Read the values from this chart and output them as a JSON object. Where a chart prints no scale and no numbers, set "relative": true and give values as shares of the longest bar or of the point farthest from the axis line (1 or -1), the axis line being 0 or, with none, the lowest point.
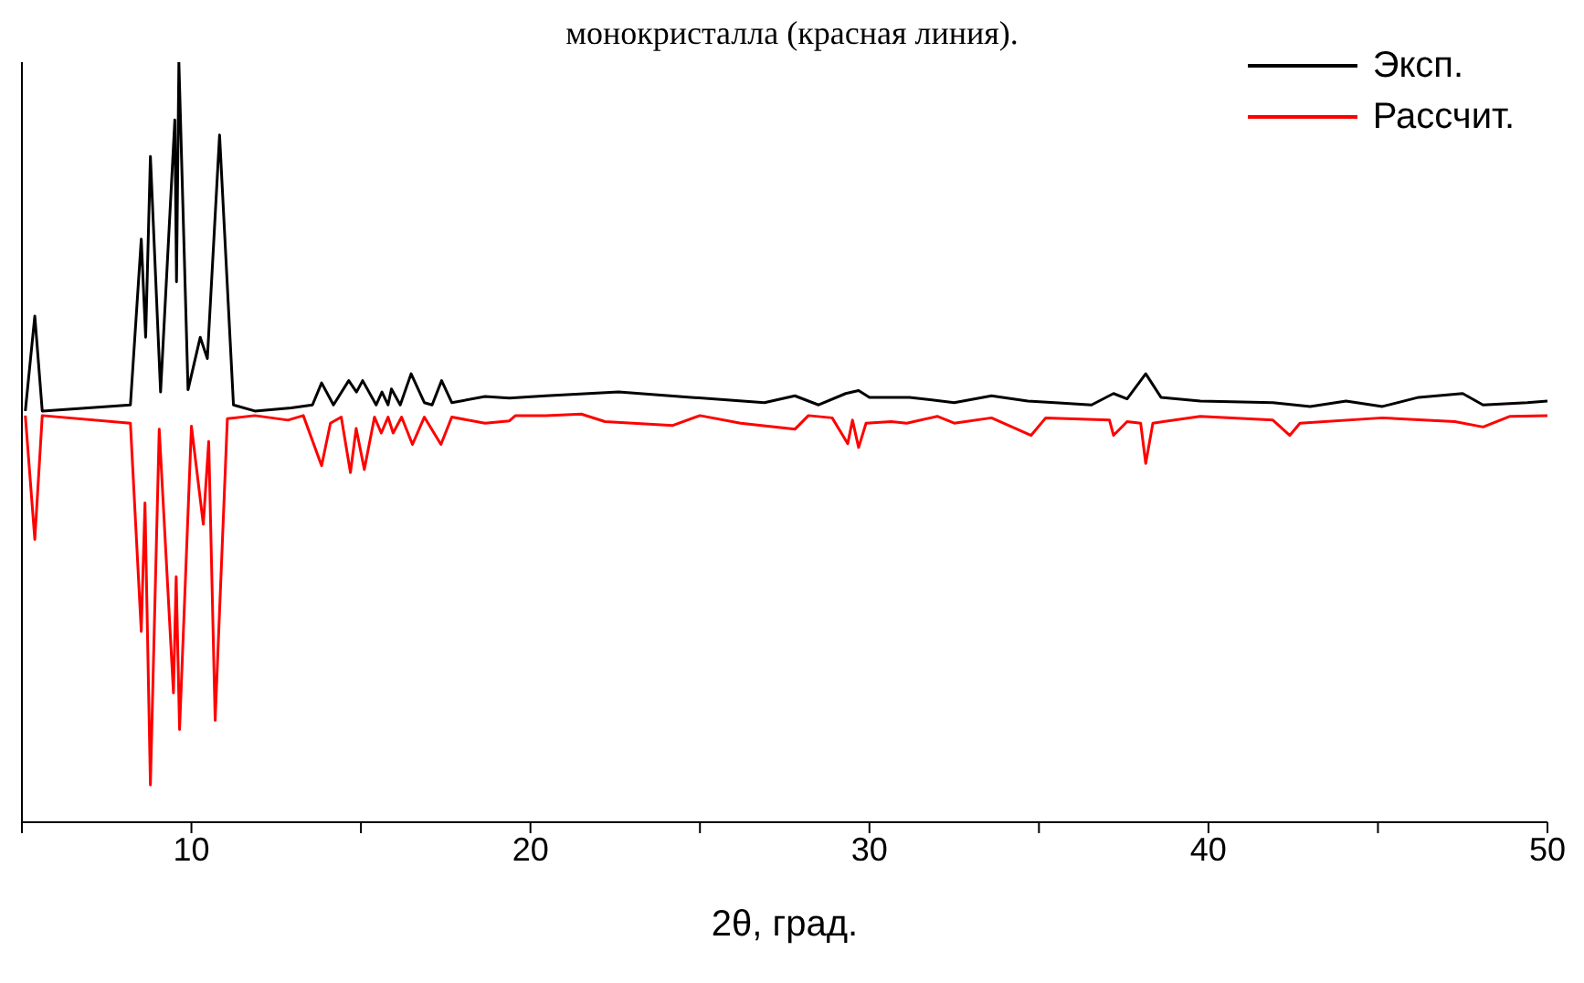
{
  "chart_data": {
    "type": "line",
    "title": "монокристалла (красная линия).",
    "xlabel": "2θ, град.",
    "relative": true,
    "xlim": [
      5,
      50
    ],
    "xticks": [
      {
        "value": 5,
        "label": null
      },
      10,
      {
        "value": 15,
        "label": null
      },
      20,
      {
        "value": 25,
        "label": null
      },
      30,
      {
        "value": 35,
        "label": null
      },
      40,
      {
        "value": 45,
        "label": null
      },
      50
    ],
    "legend": "top right",
    "grid": false,
    "marker": "none",
    "line_style": "solid",
    "series": [
      {
        "name": "Эксп.",
        "color": "#000000",
        "x": [
          5.1,
          5.38,
          5.6,
          8.2,
          8.52,
          8.65,
          8.79,
          9.09,
          9.51,
          9.56,
          9.63,
          9.9,
          10.26,
          10.47,
          10.83,
          11.24,
          11.87,
          12.94,
          13.57,
          13.84,
          14.19,
          14.64,
          14.87,
          15.05,
          15.45,
          15.62,
          15.8,
          15.9,
          16.16,
          16.48,
          16.87,
          17.1,
          17.38,
          17.68,
          18.66,
          19.38,
          20.45,
          22.6,
          24.74,
          26.9,
          27.8,
          28.5,
          29.3,
          29.68,
          30.0,
          31.18,
          32.5,
          33.6,
          34.67,
          35.47,
          36.55,
          37.2,
          37.6,
          38.15,
          38.6,
          39.76,
          41.9,
          43.0,
          44.06,
          45.13,
          46.2,
          47.5,
          48.1,
          49.4,
          50
        ],
        "values": [
          0.541,
          0.666,
          0.541,
          0.549,
          0.767,
          0.638,
          0.876,
          0.566,
          0.924,
          0.711,
          1.0,
          0.569,
          0.638,
          0.61,
          0.904,
          0.549,
          0.541,
          0.545,
          0.549,
          0.578,
          0.549,
          0.581,
          0.566,
          0.581,
          0.549,
          0.566,
          0.549,
          0.57,
          0.549,
          0.59,
          0.552,
          0.549,
          0.581,
          0.552,
          0.56,
          0.558,
          0.561,
          0.566,
          0.559,
          0.552,
          0.561,
          0.549,
          0.564,
          0.568,
          0.559,
          0.559,
          0.552,
          0.561,
          0.554,
          0.552,
          0.549,
          0.564,
          0.557,
          0.59,
          0.559,
          0.554,
          0.552,
          0.547,
          0.554,
          0.547,
          0.559,
          0.564,
          0.549,
          0.552,
          0.554
        ]
      },
      {
        "name": "Рассчит.",
        "color": "#ff0000",
        "x": [
          5.1,
          5.38,
          5.6,
          8.2,
          8.52,
          8.63,
          8.79,
          9.05,
          9.47,
          9.55,
          9.65,
          10.0,
          10.35,
          10.51,
          10.7,
          11.06,
          11.87,
          12.85,
          13.3,
          13.84,
          14.1,
          14.42,
          14.69,
          14.86,
          15.1,
          15.4,
          15.6,
          15.8,
          15.95,
          16.2,
          16.52,
          16.87,
          17.36,
          17.68,
          18.66,
          19.38,
          19.56,
          20.45,
          21.5,
          22.2,
          24.2,
          25.0,
          26.2,
          27.8,
          28.2,
          28.9,
          29.2,
          29.36,
          29.5,
          29.68,
          29.9,
          30.64,
          31.1,
          32.0,
          32.5,
          33.6,
          34.77,
          35.2,
          37.08,
          37.2,
          37.6,
          38.0,
          38.15,
          38.36,
          39.76,
          41.9,
          42.4,
          42.7,
          45.13,
          47.27,
          48.1,
          48.9,
          50
        ],
        "values": [
          0.535,
          0.372,
          0.535,
          0.525,
          0.251,
          0.42,
          0.049,
          0.517,
          0.17,
          0.323,
          0.122,
          0.521,
          0.392,
          0.501,
          0.134,
          0.531,
          0.535,
          0.529,
          0.535,
          0.469,
          0.525,
          0.533,
          0.46,
          0.518,
          0.464,
          0.533,
          0.512,
          0.533,
          0.512,
          0.533,
          0.497,
          0.533,
          0.497,
          0.533,
          0.525,
          0.528,
          0.535,
          0.535,
          0.537,
          0.527,
          0.522,
          0.535,
          0.525,
          0.517,
          0.535,
          0.532,
          0.51,
          0.498,
          0.529,
          0.493,
          0.525,
          0.527,
          0.525,
          0.534,
          0.525,
          0.532,
          0.509,
          0.532,
          0.529,
          0.509,
          0.527,
          0.525,
          0.472,
          0.525,
          0.534,
          0.529,
          0.509,
          0.525,
          0.532,
          0.527,
          0.52,
          0.534,
          0.535
        ]
      }
    ]
  }
}
